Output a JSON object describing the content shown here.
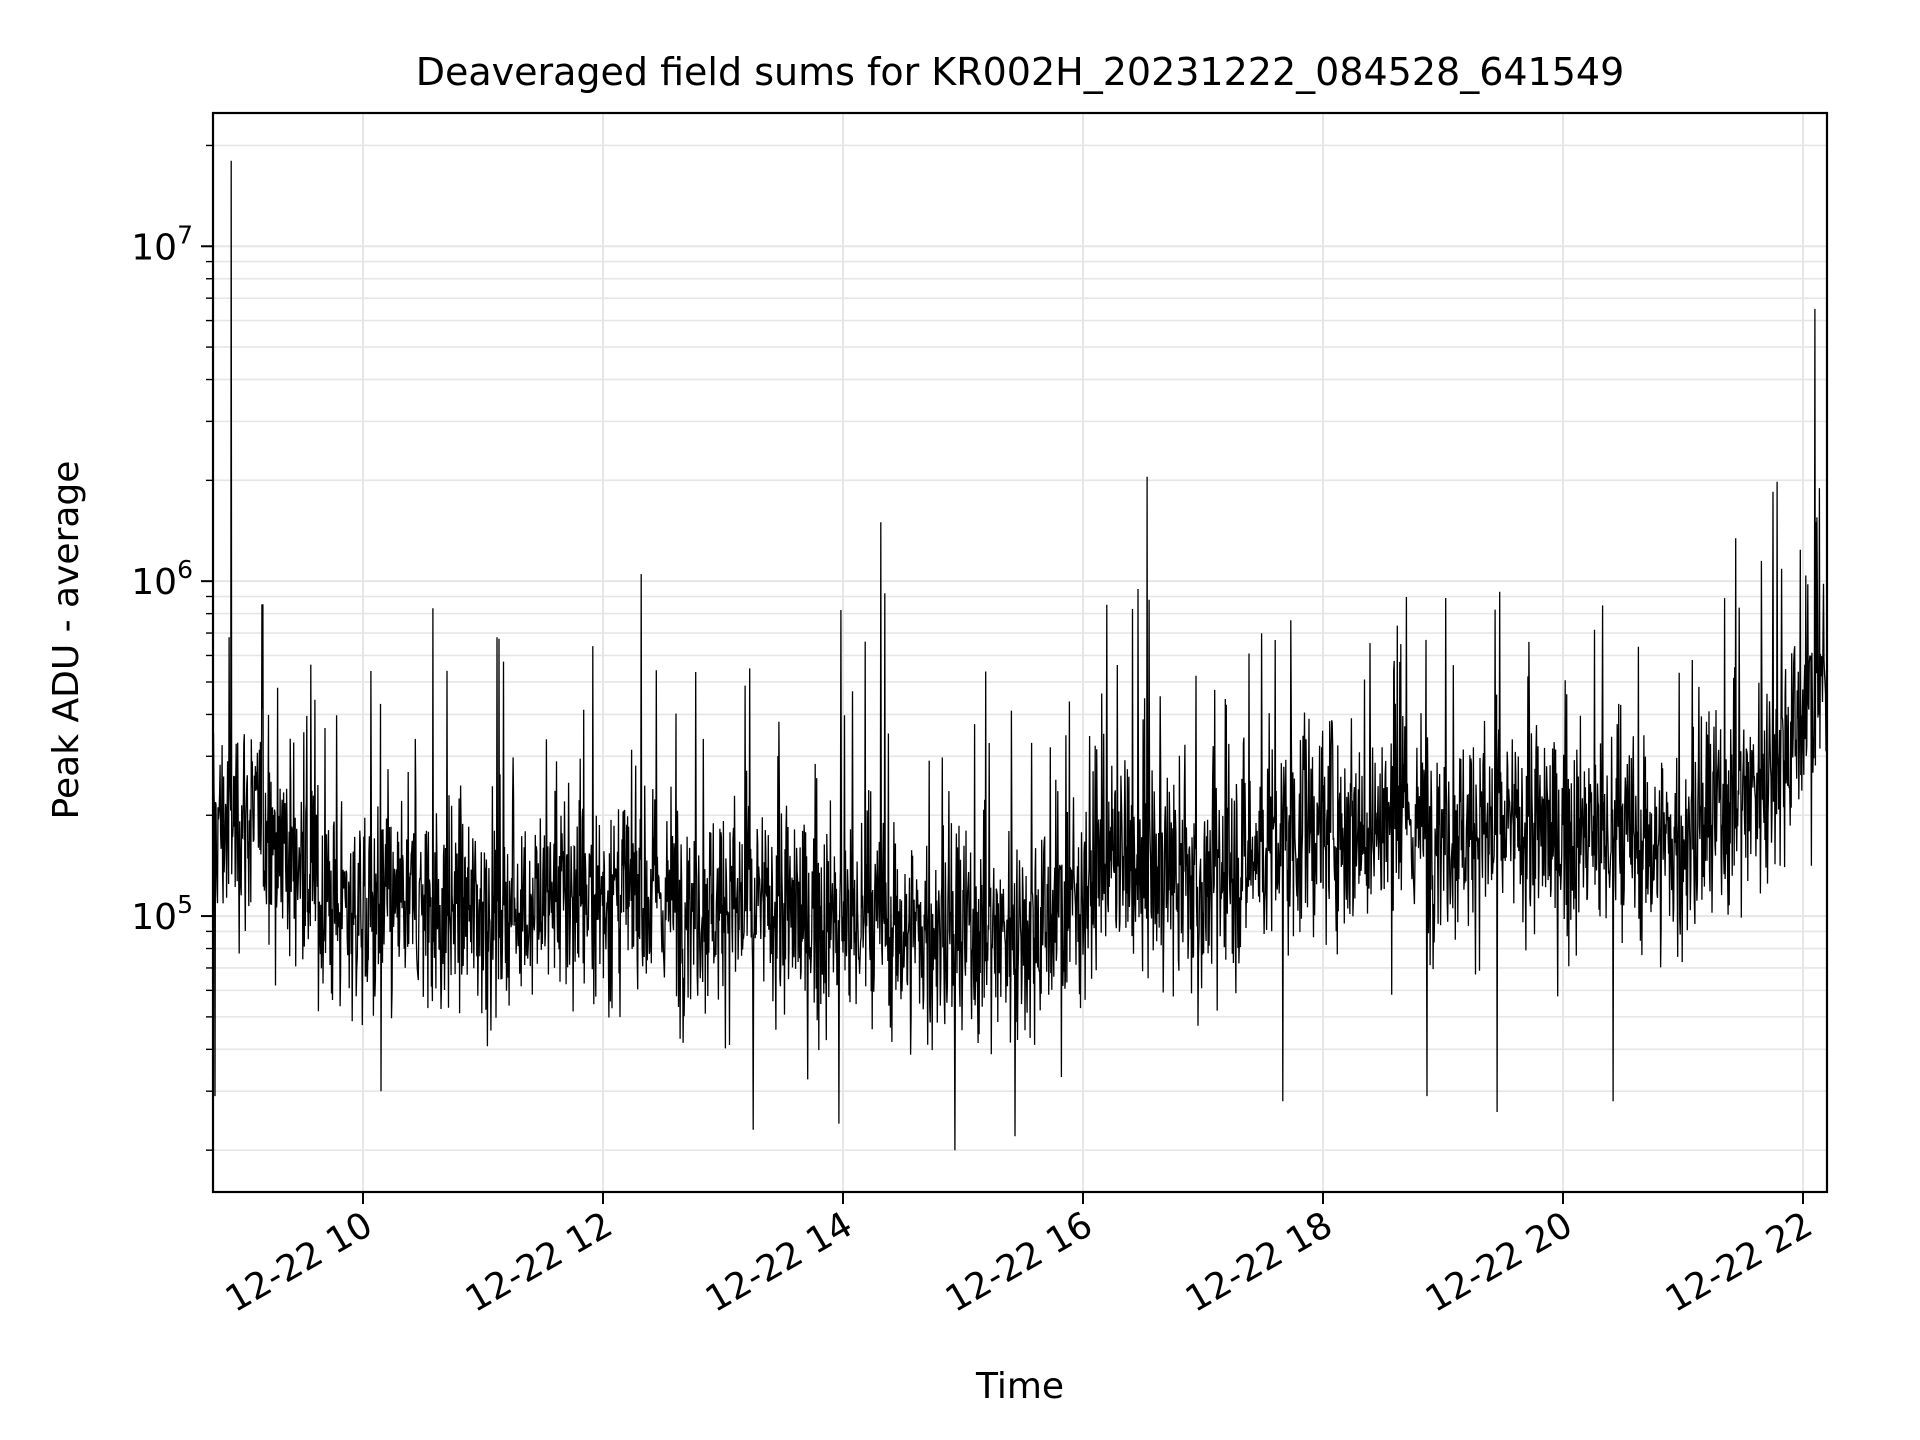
{
  "chart_data": {
    "type": "line",
    "title": "Deaveraged field sums for KR002H_20231222_084528_641549",
    "xlabel": "Time",
    "ylabel": "Peak ADU - average",
    "x_range": [
      "2023-12-22T08:45",
      "2023-12-22T22:12"
    ],
    "x_ticks": [
      {
        "value": "2023-12-22T10:00",
        "label": "12-22 10"
      },
      {
        "value": "2023-12-22T12:00",
        "label": "12-22 12"
      },
      {
        "value": "2023-12-22T14:00",
        "label": "12-22 14"
      },
      {
        "value": "2023-12-22T16:00",
        "label": "12-22 16"
      },
      {
        "value": "2023-12-22T18:00",
        "label": "12-22 18"
      },
      {
        "value": "2023-12-22T20:00",
        "label": "12-22 20"
      },
      {
        "value": "2023-12-22T22:00",
        "label": "12-22 22"
      }
    ],
    "y_scale": "log",
    "ylim": [
      15000,
      25000000
    ],
    "y_ticks": [
      {
        "value": 100000,
        "base": "10",
        "exp": "5"
      },
      {
        "value": 1000000,
        "base": "10",
        "exp": "6"
      },
      {
        "value": 10000000,
        "base": "10",
        "exp": "7"
      }
    ],
    "grid": true,
    "series": [
      {
        "color": "#000000",
        "baseline_points": [
          [
            "2023-12-22T08:45",
            180000
          ],
          [
            "2023-12-22T09:00",
            200000
          ],
          [
            "2023-12-22T09:20",
            170000
          ],
          [
            "2023-12-22T09:40",
            110000
          ],
          [
            "2023-12-22T10:00",
            105000
          ],
          [
            "2023-12-22T11:00",
            105000
          ],
          [
            "2023-12-22T12:00",
            115000
          ],
          [
            "2023-12-22T13:00",
            110000
          ],
          [
            "2023-12-22T14:00",
            95000
          ],
          [
            "2023-12-22T15:00",
            85000
          ],
          [
            "2023-12-22T15:50",
            100000
          ],
          [
            "2023-12-22T16:10",
            150000
          ],
          [
            "2023-12-22T17:00",
            120000
          ],
          [
            "2023-12-22T17:30",
            160000
          ],
          [
            "2023-12-22T18:00",
            190000
          ],
          [
            "2023-12-22T19:00",
            185000
          ],
          [
            "2023-12-22T20:00",
            175000
          ],
          [
            "2023-12-22T21:00",
            160000
          ],
          [
            "2023-12-22T21:40",
            260000
          ],
          [
            "2023-12-22T22:12",
            500000
          ]
        ],
        "spikes": [
          [
            "2023-12-22T08:54",
            18000000
          ],
          [
            "2023-12-22T08:53",
            680000
          ],
          [
            "2023-12-22T10:35",
            830000
          ],
          [
            "2023-12-22T11:07",
            680000
          ],
          [
            "2023-12-22T11:55",
            640000
          ],
          [
            "2023-12-22T12:19",
            1050000
          ],
          [
            "2023-12-22T13:59",
            820000
          ],
          [
            "2023-12-22T14:11",
            660000
          ],
          [
            "2023-12-22T14:19",
            1500000
          ],
          [
            "2023-12-22T14:21",
            920000
          ],
          [
            "2023-12-22T16:12",
            850000
          ],
          [
            "2023-12-22T16:32",
            2050000
          ],
          [
            "2023-12-22T16:33",
            880000
          ],
          [
            "2023-12-22T21:45",
            1850000
          ],
          [
            "2023-12-22T21:47",
            1980000
          ],
          [
            "2023-12-22T22:06",
            6500000
          ],
          [
            "2023-12-22T22:07",
            1550000
          ]
        ],
        "dips": [
          [
            "2023-12-22T08:46",
            29000
          ],
          [
            "2023-12-22T10:09",
            30000
          ],
          [
            "2023-12-22T13:15",
            23000
          ],
          [
            "2023-12-22T13:58",
            24000
          ],
          [
            "2023-12-22T14:56",
            20000
          ],
          [
            "2023-12-22T15:26",
            22000
          ],
          [
            "2023-12-22T17:40",
            28000
          ],
          [
            "2023-12-22T18:52",
            29000
          ],
          [
            "2023-12-22T19:27",
            26000
          ],
          [
            "2023-12-22T20:25",
            28000
          ]
        ]
      }
    ]
  }
}
